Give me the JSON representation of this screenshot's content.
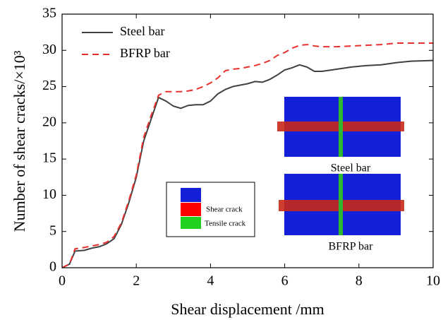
{
  "chart_data": {
    "type": "line",
    "xlabel": "Shear displacement /mm",
    "ylabel": "Number of shear cracks/×10³",
    "x": [
      0,
      0.2,
      0.35,
      0.6,
      0.8,
      1.0,
      1.2,
      1.4,
      1.6,
      1.8,
      2.0,
      2.2,
      2.4,
      2.6,
      2.8,
      3.0,
      3.2,
      3.4,
      3.6,
      3.8,
      4.0,
      4.2,
      4.4,
      4.6,
      4.8,
      5.0,
      5.2,
      5.4,
      5.6,
      5.8,
      6.0,
      6.2,
      6.4,
      6.6,
      6.8,
      7.0,
      7.4,
      7.8,
      8.2,
      8.6,
      9.0,
      9.4,
      10
    ],
    "series": [
      {
        "name": "Steel bar",
        "color": "#404040",
        "dash": "solid",
        "values": [
          0,
          0.5,
          2.3,
          2.4,
          2.7,
          2.9,
          3.3,
          4.0,
          6.0,
          9.0,
          12.5,
          17.5,
          20.5,
          23.5,
          23.0,
          22.3,
          22.0,
          22.4,
          22.5,
          22.5,
          23.0,
          24.0,
          24.6,
          25.0,
          25.2,
          25.4,
          25.7,
          25.6,
          26.0,
          26.6,
          27.3,
          27.6,
          28.0,
          27.7,
          27.1,
          27.1,
          27.4,
          27.7,
          27.9,
          28.0,
          28.3,
          28.5,
          28.6
        ]
      },
      {
        "name": "BFRP bar",
        "color": "#e8312f",
        "dash": "dashed",
        "values": [
          0,
          0.5,
          2.6,
          2.8,
          3.0,
          3.2,
          3.5,
          4.3,
          6.2,
          9.3,
          12.8,
          18,
          21,
          23.8,
          24.3,
          24.3,
          24.3,
          24.4,
          24.6,
          25.0,
          25.5,
          26.2,
          27.2,
          27.4,
          27.5,
          27.7,
          27.9,
          28.2,
          28.6,
          29.3,
          29.7,
          30.3,
          30.7,
          30.8,
          30.6,
          30.5,
          30.5,
          30.6,
          30.7,
          30.8,
          31.0,
          31.0,
          31.0
        ]
      }
    ],
    "xlim": [
      0,
      10
    ],
    "xticks": [
      0,
      2,
      4,
      6,
      8,
      10
    ],
    "ylim": [
      0,
      35
    ],
    "yticks": [
      0,
      5,
      10,
      15,
      20,
      25,
      30,
      35
    ],
    "legend": "upper left",
    "inset": {
      "labels": [
        "Steel bar",
        "BFRP bar"
      ],
      "legend": [
        "Shear crack",
        "Tensile crack"
      ]
    }
  }
}
